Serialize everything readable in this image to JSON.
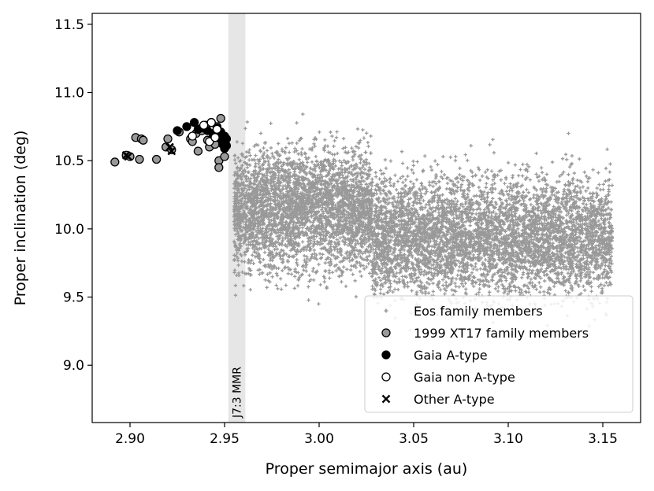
{
  "chart_data": {
    "type": "scatter",
    "xlabel": "Proper semimajor axis (au)",
    "ylabel": "Proper inclination (deg)",
    "xlim": [
      2.88,
      3.17
    ],
    "ylim": [
      8.58,
      11.58
    ],
    "xticks": [
      "2.90",
      "2.95",
      "3.00",
      "3.05",
      "3.10",
      "3.15"
    ],
    "yticks": [
      "9.0",
      "9.5",
      "10.0",
      "10.5",
      "11.0",
      "11.5"
    ],
    "grid": false,
    "legend_position": "lower-right",
    "annotation": {
      "text": "J7:3 MMR",
      "x_range": [
        2.952,
        2.961
      ]
    },
    "colors": {
      "eos": "#999999",
      "xt17_fill": "#999999",
      "gaia_a_fill": "#000000",
      "gaia_non_a_fill": "#ffffff",
      "mmr_band": "#e6e6e6"
    },
    "series": [
      {
        "name": "Eos family members",
        "marker": "plus",
        "clouds": [
          {
            "x_range": [
              2.955,
              3.028
            ],
            "y_center": 10.15,
            "y_spread": 0.5,
            "count": 3500
          },
          {
            "x_range": [
              3.028,
              3.155
            ],
            "y_center": 9.95,
            "y_spread": 0.5,
            "count": 5000
          }
        ]
      },
      {
        "name": "1999 XT17 family members",
        "marker": "circle",
        "points": [
          [
            2.892,
            10.49
          ],
          [
            2.898,
            10.54
          ],
          [
            2.9,
            10.53
          ],
          [
            2.903,
            10.67
          ],
          [
            2.905,
            10.51
          ],
          [
            2.906,
            10.66
          ],
          [
            2.907,
            10.65
          ],
          [
            2.914,
            10.51
          ],
          [
            2.919,
            10.6
          ],
          [
            2.92,
            10.66
          ],
          [
            2.922,
            10.58
          ],
          [
            2.926,
            10.71
          ],
          [
            2.932,
            10.66
          ],
          [
            2.933,
            10.64
          ],
          [
            2.935,
            10.7
          ],
          [
            2.936,
            10.57
          ],
          [
            2.938,
            10.72
          ],
          [
            2.94,
            10.76
          ],
          [
            2.941,
            10.65
          ],
          [
            2.942,
            10.6
          ],
          [
            2.943,
            10.78
          ],
          [
            2.944,
            10.69
          ],
          [
            2.945,
            10.62
          ],
          [
            2.946,
            10.75
          ],
          [
            2.947,
            10.5
          ],
          [
            2.947,
            10.45
          ],
          [
            2.948,
            10.81
          ],
          [
            2.949,
            10.65
          ],
          [
            2.95,
            10.53
          ]
        ]
      },
      {
        "name": "Gaia A-type",
        "marker": "circle-filled",
        "points": [
          [
            2.925,
            10.72
          ],
          [
            2.93,
            10.75
          ],
          [
            2.934,
            10.78
          ],
          [
            2.936,
            10.73
          ],
          [
            2.938,
            10.74
          ],
          [
            2.941,
            10.72
          ],
          [
            2.944,
            10.7
          ],
          [
            2.946,
            10.74
          ],
          [
            2.947,
            10.67
          ],
          [
            2.948,
            10.71
          ],
          [
            2.949,
            10.62
          ],
          [
            2.95,
            10.68
          ],
          [
            2.95,
            10.59
          ],
          [
            2.951,
            10.66
          ],
          [
            2.951,
            10.61
          ]
        ]
      },
      {
        "name": "Gaia non A-type",
        "marker": "circle-open",
        "points": [
          [
            2.933,
            10.68
          ],
          [
            2.939,
            10.76
          ],
          [
            2.942,
            10.64
          ],
          [
            2.943,
            10.78
          ],
          [
            2.945,
            10.67
          ],
          [
            2.946,
            10.73
          ]
        ]
      },
      {
        "name": "Other A-type",
        "marker": "x",
        "points": [
          [
            2.898,
            10.54
          ],
          [
            2.899,
            10.53
          ],
          [
            2.921,
            10.6
          ],
          [
            2.922,
            10.57
          ]
        ]
      }
    ]
  }
}
